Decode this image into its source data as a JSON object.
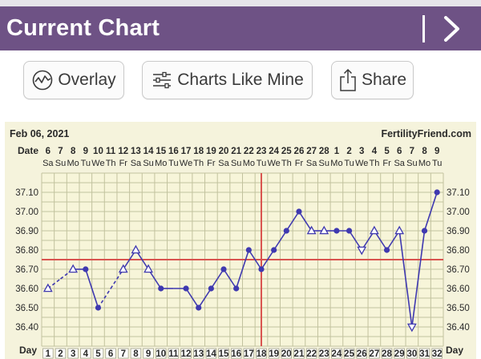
{
  "header": {
    "title": "Current Chart",
    "next_icon": "chevron-right-icon"
  },
  "toolbar": {
    "overlay_label": "Overlay",
    "charts_like_mine_label": "Charts Like Mine",
    "share_label": "Share"
  },
  "chart_meta": {
    "start_date": "Feb 06, 2021",
    "brand": "FertilityFriend.com",
    "date_row_label": "Date",
    "day_row_label": "Day",
    "dates": [
      "6",
      "7",
      "8",
      "9",
      "10",
      "11",
      "12",
      "13",
      "14",
      "15",
      "16",
      "17",
      "18",
      "19",
      "20",
      "21",
      "22",
      "23",
      "24",
      "25",
      "26",
      "27",
      "28",
      "1",
      "2",
      "3",
      "4",
      "5",
      "6",
      "7",
      "8",
      "9"
    ],
    "weekdays": [
      "Sa",
      "Su",
      "Mo",
      "Tu",
      "We",
      "Th",
      "Fr",
      "Sa",
      "Su",
      "Mo",
      "Tu",
      "We",
      "Th",
      "Fr",
      "Sa",
      "Su",
      "Mo",
      "Tu",
      "We",
      "Th",
      "Fr",
      "Sa",
      "Su",
      "Mo",
      "Tu",
      "We",
      "Th",
      "Fr",
      "Sa",
      "Su",
      "Mo",
      "Tu"
    ]
  },
  "colors": {
    "header_bg": "#6e5285",
    "plot_bg": "#f7f5d9",
    "frame_bg": "#f5f3dc",
    "grid": "#c2c29e",
    "temp_line": "#3f39b0",
    "coverline": "#d9534f",
    "ovulation_line": "#d9534f"
  },
  "chart_data": {
    "type": "line",
    "x": [
      1,
      2,
      3,
      4,
      5,
      6,
      7,
      8,
      9,
      10,
      11,
      12,
      13,
      14,
      15,
      16,
      17,
      18,
      19,
      20,
      21,
      22,
      23,
      24,
      25,
      26,
      27,
      28,
      29,
      30,
      31,
      32
    ],
    "series": [
      {
        "values": [
          36.6,
          36.65,
          36.7,
          36.7,
          36.5,
          36.6,
          36.7,
          36.8,
          36.7,
          36.6,
          36.6,
          36.6,
          36.5,
          36.6,
          36.7,
          36.6,
          36.8,
          36.7,
          36.8,
          36.9,
          37.0,
          36.9,
          36.9,
          36.9,
          36.9,
          36.8,
          36.9,
          36.8,
          36.9,
          36.4,
          36.9,
          37.1
        ],
        "markers": [
          "open-triangle",
          "none",
          "open-triangle",
          "dot",
          "dot",
          "none",
          "open-triangle",
          "open-triangle",
          "open-triangle",
          "dot",
          "none",
          "dot",
          "dot",
          "dot",
          "dot",
          "dot",
          "dot",
          "dot",
          "dot",
          "dot",
          "dot",
          "open-triangle",
          "open-triangle",
          "dot",
          "dot",
          "open-triangle-down",
          "open-triangle",
          "dot",
          "open-triangle",
          "open-triangle-down",
          "dot",
          "dot"
        ],
        "segments": [
          "dashed",
          "dashed",
          "solid",
          "solid",
          "dashed",
          "dashed",
          "solid",
          "solid",
          "solid",
          "solid",
          "solid",
          "solid",
          "solid",
          "solid",
          "solid",
          "solid",
          "solid",
          "solid",
          "solid",
          "solid",
          "solid",
          "solid",
          "solid",
          "solid",
          "solid",
          "solid",
          "solid",
          "solid",
          "solid",
          "solid",
          "solid"
        ]
      }
    ],
    "ylim": [
      36.3,
      37.2
    ],
    "y_ticks": [
      "37.10",
      "37.00",
      "36.90",
      "36.80",
      "36.70",
      "36.60",
      "36.50",
      "36.40"
    ],
    "coverline": 36.75,
    "ovulation_day": 18,
    "grid": true
  }
}
